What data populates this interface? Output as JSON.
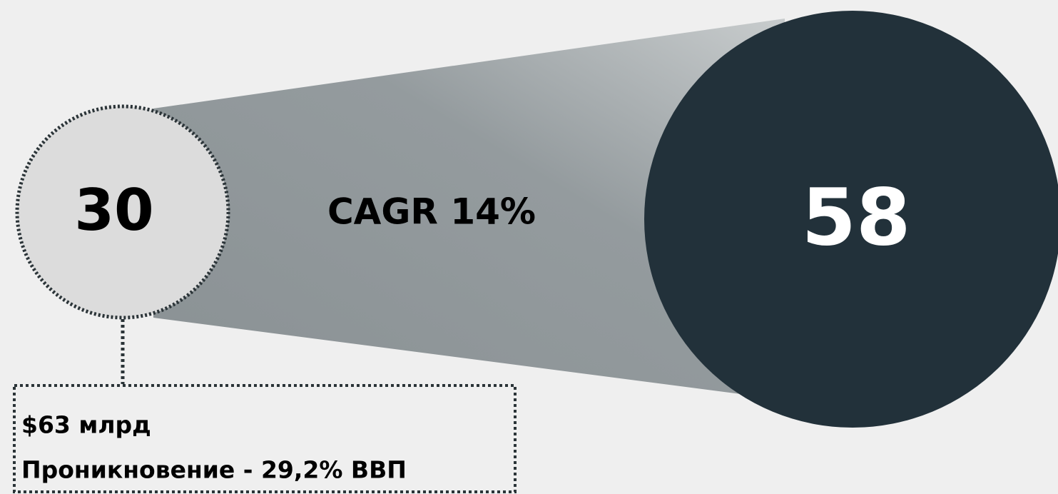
{
  "left_circle": {
    "label": "30"
  },
  "growth": {
    "label": "CAGR 14%"
  },
  "right_circle": {
    "label": "58"
  },
  "note": {
    "lines": [
      "$63 млрд",
      "Проникновение - 29,2% ВВП"
    ]
  }
}
